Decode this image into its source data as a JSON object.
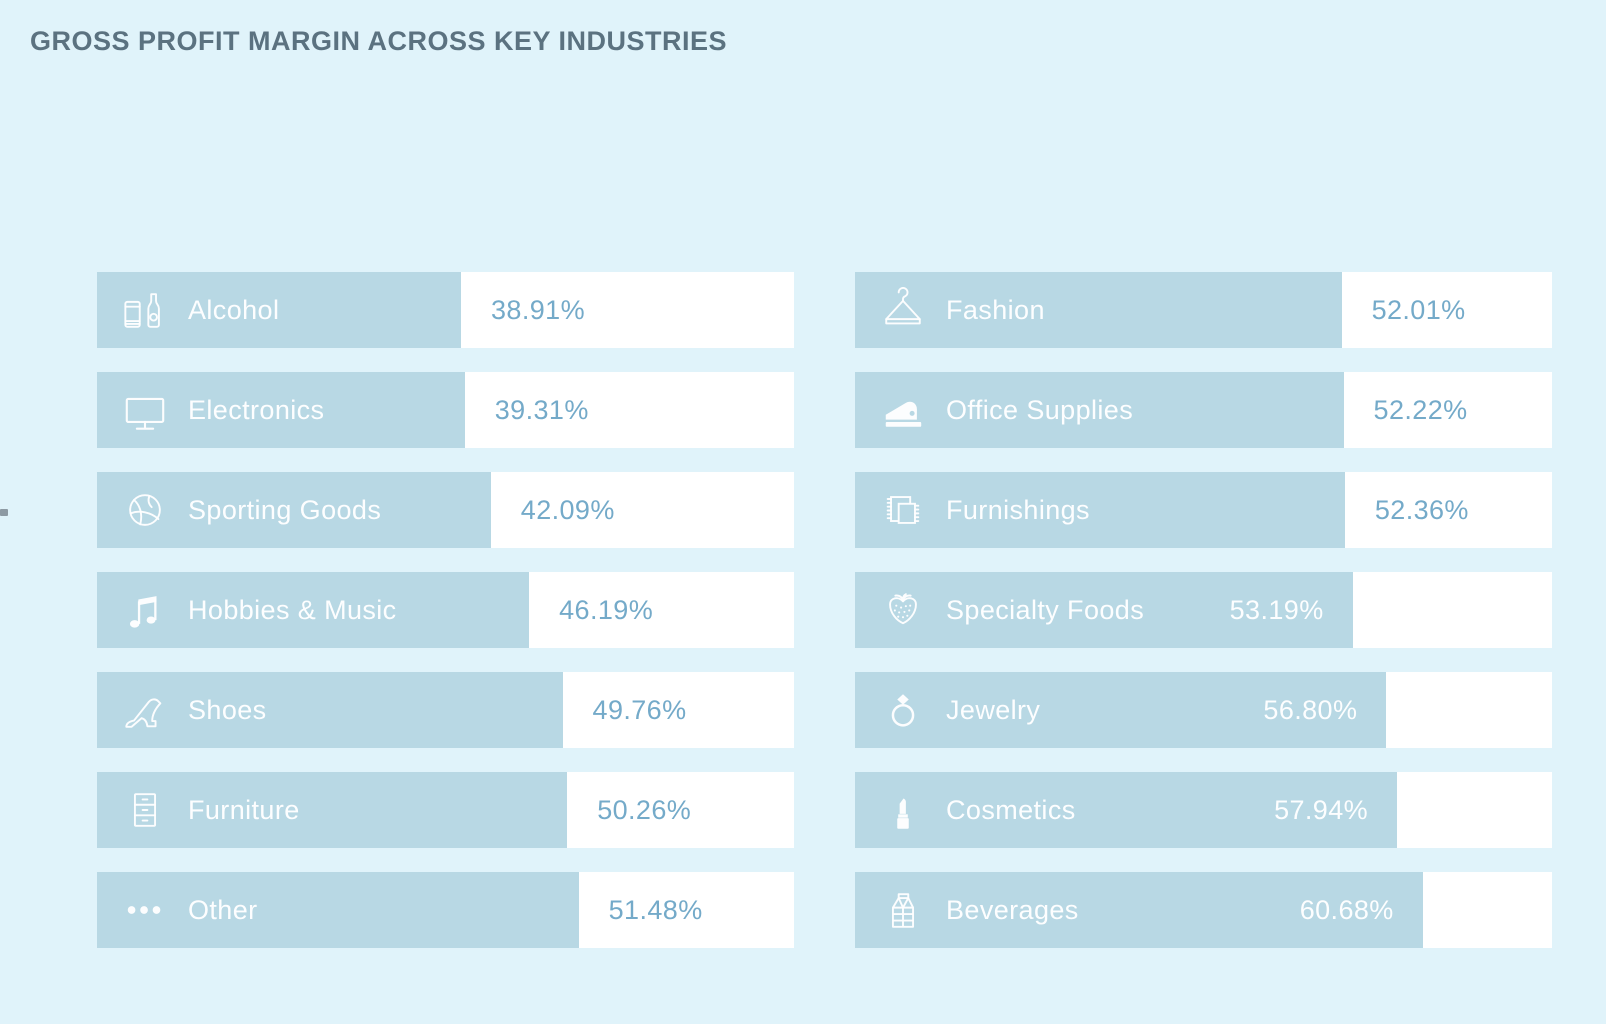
{
  "title": "GROSS PROFIT MARGIN ACROSS KEY INDUSTRIES",
  "colors": {
    "background": "#e0f3fa",
    "bar": "#b8d8e4",
    "track": "#ffffff",
    "value_text": "#74aac9",
    "label_text": "#ffffff",
    "title_text": "#5b7280",
    "tick": "#8d9aa3"
  },
  "chart_data": {
    "type": "bar",
    "orientation": "horizontal",
    "title": "GROSS PROFIT MARGIN ACROSS KEY INDUSTRIES",
    "unit": "%",
    "axis_min": 0,
    "axis_max": 74.5,
    "grid": "off",
    "legend": "none",
    "sort_order": "ascending by value, column-major (left column then right column)",
    "columns": [
      {
        "rows": [
          {
            "label": "Alcohol",
            "value": 38.91,
            "display": "38.91%",
            "icon": "beer-can-and-bottle",
            "value_position": "outside"
          },
          {
            "label": "Electronics",
            "value": 39.31,
            "display": "39.31%",
            "icon": "monitor",
            "value_position": "outside"
          },
          {
            "label": "Sporting Goods",
            "value": 42.09,
            "display": "42.09%",
            "icon": "basketball",
            "value_position": "outside"
          },
          {
            "label": "Hobbies & Music",
            "value": 46.19,
            "display": "46.19%",
            "icon": "music-notes",
            "value_position": "outside"
          },
          {
            "label": "Shoes",
            "value": 49.76,
            "display": "49.76%",
            "icon": "high-heel",
            "value_position": "outside"
          },
          {
            "label": "Furniture",
            "value": 50.26,
            "display": "50.26%",
            "icon": "drawer-cabinet",
            "value_position": "outside"
          },
          {
            "label": "Other",
            "value": 51.48,
            "display": "51.48%",
            "icon": "ellipsis",
            "value_position": "outside"
          }
        ]
      },
      {
        "rows": [
          {
            "label": "Fashion",
            "value": 52.01,
            "display": "52.01%",
            "icon": "clothes-hanger",
            "value_position": "outside"
          },
          {
            "label": "Office Supplies",
            "value": 52.22,
            "display": "52.22%",
            "icon": "stapler",
            "value_position": "outside"
          },
          {
            "label": "Furnishings",
            "value": 52.36,
            "display": "52.36%",
            "icon": "rug",
            "value_position": "outside"
          },
          {
            "label": "Specialty Foods",
            "value": 53.19,
            "display": "53.19%",
            "icon": "strawberry",
            "value_position": "inside"
          },
          {
            "label": "Jewelry",
            "value": 56.8,
            "display": "56.80%",
            "icon": "diamond-ring",
            "value_position": "inside"
          },
          {
            "label": "Cosmetics",
            "value": 57.94,
            "display": "57.94%",
            "icon": "lipstick",
            "value_position": "inside"
          },
          {
            "label": "Beverages",
            "value": 60.68,
            "display": "60.68%",
            "icon": "milk-carton",
            "value_position": "inside"
          }
        ]
      }
    ]
  }
}
